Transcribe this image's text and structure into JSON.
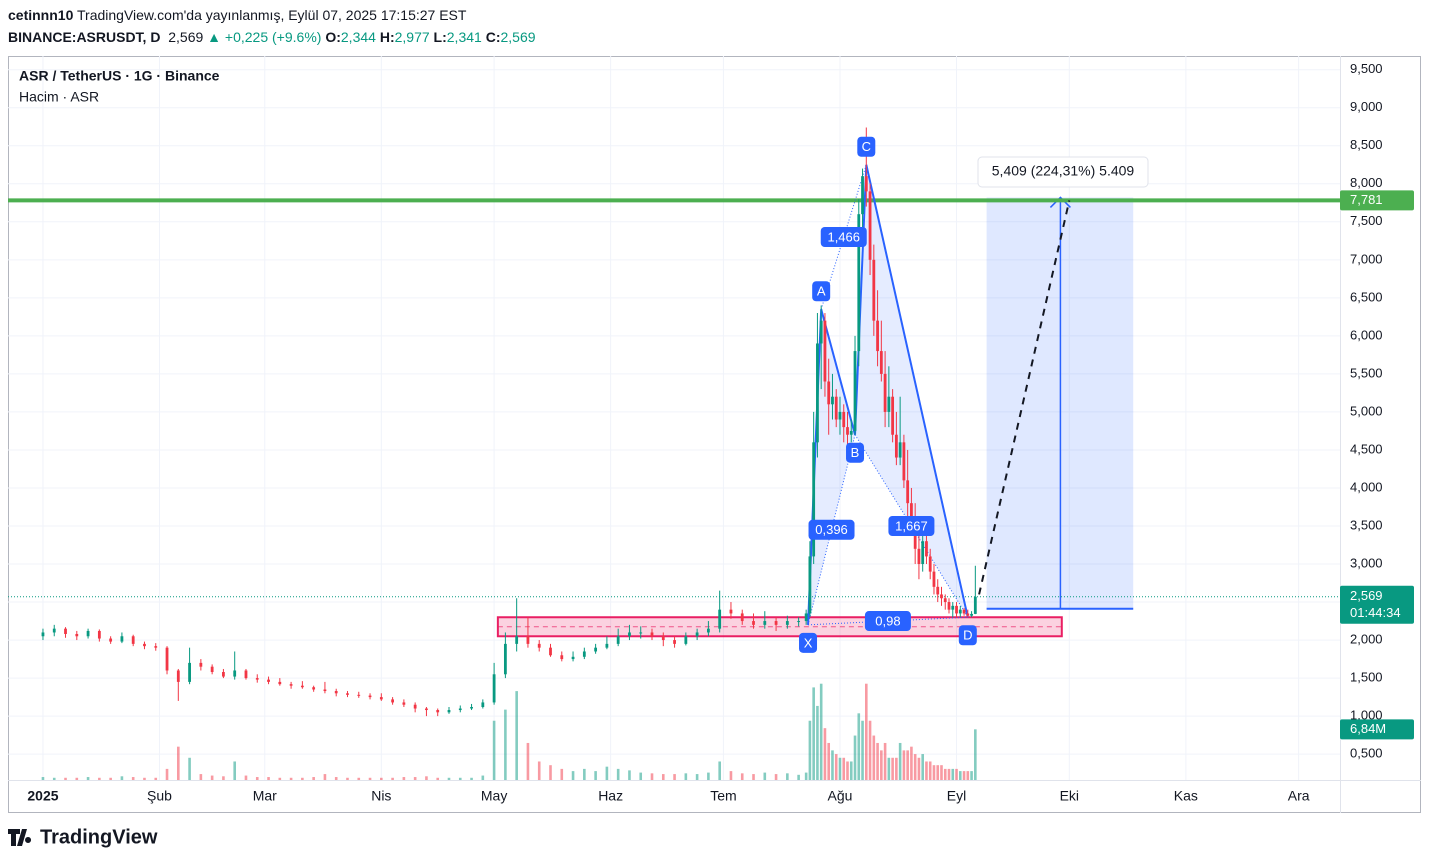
{
  "header": {
    "user": "cetinnn10",
    "published": "TradingView.com'da yayınlanmış, Eylül 07, 2025 17:15:27 EST",
    "symbol": "BINANCE:ASRUSDT, D",
    "last": "2,569",
    "change": "▲ +0,225 (+9.6%)",
    "ohlc": [
      {
        "label": "O:",
        "value": "2,344"
      },
      {
        "label": "H:",
        "value": "2,977"
      },
      {
        "label": "L:",
        "value": "2,341"
      },
      {
        "label": "C:",
        "value": "2,569"
      }
    ]
  },
  "chart_data": {
    "type": "candlestick",
    "title": "ASR / TetherUS · 1G · Binance",
    "subtitle": "Hacim · ASR",
    "up_color": "#089981",
    "down_color": "#f23645",
    "grid": true,
    "xlim": [
      -9.3,
      345
    ],
    "ylim": [
      0.16,
      9.68
    ],
    "vlim": [
      0,
      13.5
    ],
    "xticks": [
      {
        "value": 0,
        "label": "2025"
      },
      {
        "value": 31,
        "label": "Şub"
      },
      {
        "value": 59,
        "label": "Mar"
      },
      {
        "value": 90,
        "label": "Nis"
      },
      {
        "value": 120,
        "label": "May"
      },
      {
        "value": 151,
        "label": "Haz"
      },
      {
        "value": 181,
        "label": "Tem"
      },
      {
        "value": 212,
        "label": "Ağu"
      },
      {
        "value": 243,
        "label": "Eyl"
      },
      {
        "value": 273,
        "label": "Eki"
      },
      {
        "value": 304,
        "label": "Kas"
      },
      {
        "value": 334,
        "label": "Ara"
      }
    ],
    "yticks": [
      {
        "value": 0.5,
        "label": "0,500"
      },
      {
        "value": 1,
        "label": "1,000"
      },
      {
        "value": 1.5,
        "label": "1,500"
      },
      {
        "value": 2,
        "label": "2,000"
      },
      {
        "value": 2.5,
        "label": "2,500"
      },
      {
        "value": 3,
        "label": "3,000"
      },
      {
        "value": 3.5,
        "label": "3,500"
      },
      {
        "value": 4,
        "label": "4,000"
      },
      {
        "value": 4.5,
        "label": "4,500"
      },
      {
        "value": 5,
        "label": "5,000"
      },
      {
        "value": 5.5,
        "label": "5,500"
      },
      {
        "value": 6,
        "label": "6,000"
      },
      {
        "value": 6.5,
        "label": "6,500"
      },
      {
        "value": 7,
        "label": "7,000"
      },
      {
        "value": 7.5,
        "label": "7,500"
      },
      {
        "value": 8,
        "label": "8,000"
      },
      {
        "value": 8.5,
        "label": "8,500"
      },
      {
        "value": 9,
        "label": "9,000"
      },
      {
        "value": 9.5,
        "label": "9,500"
      }
    ],
    "x": [
      0,
      3,
      6,
      9,
      12,
      15,
      18,
      21,
      24,
      27,
      30,
      33,
      36,
      39,
      42,
      45,
      48,
      51,
      54,
      57,
      60,
      63,
      66,
      69,
      72,
      75,
      78,
      81,
      84,
      87,
      90,
      93,
      96,
      99,
      102,
      105,
      108,
      111,
      114,
      117,
      120,
      123,
      126,
      129,
      132,
      135,
      138,
      141,
      144,
      147,
      150,
      153,
      156,
      159,
      162,
      165,
      168,
      171,
      174,
      177,
      180,
      183,
      186,
      189,
      192,
      195,
      198,
      201,
      203,
      204,
      205,
      206,
      207,
      208,
      209,
      210,
      211,
      212,
      213,
      214,
      215,
      216,
      217,
      218,
      219,
      220,
      221,
      222,
      223,
      224,
      225,
      226,
      227,
      228,
      229,
      230,
      231,
      232,
      233,
      234,
      235,
      236,
      237,
      238,
      239,
      240,
      241,
      242,
      243,
      244,
      245,
      246,
      247,
      248
    ],
    "open": [
      2.05,
      2.1,
      2.15,
      2.08,
      2.05,
      2.12,
      2.02,
      1.98,
      2.05,
      1.95,
      1.92,
      1.9,
      1.6,
      1.45,
      1.7,
      1.65,
      1.58,
      1.52,
      1.6,
      1.5,
      1.48,
      1.45,
      1.42,
      1.4,
      1.38,
      1.35,
      1.33,
      1.3,
      1.28,
      1.27,
      1.25,
      1.22,
      1.18,
      1.15,
      1.1,
      1.08,
      1.05,
      1.08,
      1.1,
      1.12,
      1.18,
      1.55,
      1.95,
      2.05,
      1.95,
      1.9,
      1.8,
      1.75,
      1.78,
      1.85,
      1.9,
      1.95,
      2.05,
      2.1,
      2.1,
      2.05,
      2.0,
      1.95,
      2.05,
      2.1,
      2.15,
      2.4,
      2.35,
      2.25,
      2.2,
      2.25,
      2.2,
      2.25,
      2.25,
      2.35,
      3.1,
      4.6,
      5.9,
      6.2,
      5.4,
      5.1,
      5.2,
      4.9,
      5.0,
      4.8,
      4.7,
      4.75,
      5.8,
      7.6,
      8.1,
      7.9,
      7.0,
      6.2,
      5.8,
      5.5,
      5.0,
      5.2,
      4.7,
      4.4,
      4.6,
      4.1,
      3.8,
      3.5,
      3.2,
      3.0,
      3.3,
      3.1,
      2.9,
      2.7,
      2.6,
      2.55,
      2.5,
      2.4,
      2.45,
      2.35,
      2.4,
      2.35,
      2.32,
      2.344
    ],
    "high": [
      2.15,
      2.2,
      2.17,
      2.12,
      2.15,
      2.14,
      2.05,
      2.1,
      2.07,
      1.98,
      1.96,
      1.92,
      1.62,
      1.9,
      1.75,
      1.68,
      1.62,
      1.85,
      1.62,
      1.55,
      1.52,
      1.5,
      1.45,
      1.46,
      1.4,
      1.45,
      1.36,
      1.33,
      1.32,
      1.3,
      1.3,
      1.25,
      1.22,
      1.18,
      1.12,
      1.1,
      1.12,
      1.14,
      1.16,
      1.22,
      1.7,
      2.1,
      2.55,
      2.3,
      2.0,
      1.95,
      1.85,
      1.85,
      1.9,
      1.95,
      2.05,
      2.15,
      2.2,
      2.18,
      2.15,
      2.1,
      2.05,
      2.1,
      2.15,
      2.25,
      2.65,
      2.5,
      2.4,
      2.35,
      2.38,
      2.3,
      2.32,
      2.3,
      2.4,
      3.3,
      5.0,
      6.3,
      6.4,
      6.3,
      5.7,
      5.5,
      5.3,
      5.2,
      5.1,
      5.0,
      4.9,
      6.0,
      7.8,
      8.2,
      8.74,
      8.0,
      7.2,
      6.6,
      6.2,
      5.8,
      5.6,
      5.3,
      5.0,
      5.2,
      4.7,
      4.5,
      4.0,
      3.8,
      3.4,
      3.4,
      3.4,
      3.2,
      3.0,
      2.8,
      2.7,
      2.6,
      2.55,
      2.5,
      2.5,
      2.45,
      2.42,
      2.4,
      2.38,
      2.977
    ],
    "low": [
      2.0,
      2.05,
      2.03,
      2.0,
      2.02,
      1.98,
      1.95,
      1.96,
      1.92,
      1.88,
      1.86,
      1.55,
      1.2,
      1.42,
      1.6,
      1.55,
      1.5,
      1.48,
      1.48,
      1.44,
      1.42,
      1.4,
      1.36,
      1.36,
      1.32,
      1.3,
      1.26,
      1.25,
      1.24,
      1.22,
      1.2,
      1.15,
      1.12,
      1.05,
      1.0,
      1.0,
      1.03,
      1.05,
      1.08,
      1.1,
      1.15,
      1.5,
      1.85,
      1.9,
      1.85,
      1.78,
      1.72,
      1.72,
      1.75,
      1.82,
      1.88,
      1.92,
      2.0,
      2.02,
      2.0,
      1.92,
      1.9,
      1.93,
      2.0,
      2.05,
      2.1,
      2.28,
      2.2,
      2.15,
      2.15,
      2.12,
      2.15,
      2.18,
      2.2,
      2.3,
      3.0,
      4.4,
      5.3,
      5.2,
      4.7,
      4.9,
      4.8,
      4.7,
      4.6,
      4.5,
      4.6,
      4.7,
      5.6,
      7.2,
      7.7,
      6.8,
      6.0,
      5.6,
      5.4,
      4.8,
      4.8,
      4.6,
      4.3,
      4.3,
      4.0,
      3.6,
      3.4,
      3.0,
      2.8,
      2.9,
      3.0,
      2.8,
      2.6,
      2.5,
      2.45,
      2.4,
      2.35,
      2.3,
      2.3,
      2.3,
      2.32,
      2.3,
      2.3,
      2.341
    ],
    "close": [
      2.1,
      2.15,
      2.08,
      2.05,
      2.12,
      2.02,
      1.98,
      2.05,
      1.95,
      1.92,
      1.9,
      1.6,
      1.45,
      1.7,
      1.65,
      1.58,
      1.52,
      1.6,
      1.5,
      1.48,
      1.45,
      1.42,
      1.4,
      1.38,
      1.35,
      1.33,
      1.3,
      1.28,
      1.27,
      1.25,
      1.22,
      1.18,
      1.15,
      1.1,
      1.08,
      1.05,
      1.08,
      1.1,
      1.12,
      1.18,
      1.55,
      1.95,
      2.05,
      1.95,
      1.9,
      1.8,
      1.75,
      1.78,
      1.85,
      1.9,
      1.95,
      2.05,
      2.1,
      2.1,
      2.05,
      2.0,
      1.95,
      2.05,
      2.1,
      2.15,
      2.4,
      2.35,
      2.25,
      2.2,
      2.25,
      2.2,
      2.25,
      2.25,
      2.35,
      3.1,
      4.6,
      5.9,
      6.2,
      5.4,
      5.1,
      5.2,
      4.9,
      5.0,
      4.8,
      4.7,
      4.75,
      5.8,
      7.6,
      8.1,
      7.9,
      7.0,
      6.2,
      5.8,
      5.5,
      5.0,
      5.2,
      4.7,
      4.4,
      4.6,
      4.1,
      3.8,
      3.5,
      3.2,
      3.0,
      3.3,
      3.1,
      2.9,
      2.7,
      2.6,
      2.55,
      2.5,
      2.4,
      2.45,
      2.35,
      2.4,
      2.35,
      2.32,
      2.344,
      2.569
    ],
    "volume": [
      0.4,
      0.3,
      0.3,
      0.3,
      0.4,
      0.3,
      0.3,
      0.5,
      0.4,
      0.3,
      0.3,
      1.5,
      4.5,
      3.0,
      0.8,
      0.6,
      0.5,
      2.5,
      0.6,
      0.4,
      0.4,
      0.3,
      0.3,
      0.3,
      0.4,
      0.8,
      0.4,
      0.3,
      0.3,
      0.3,
      0.3,
      0.3,
      0.4,
      0.4,
      0.5,
      0.3,
      0.3,
      0.3,
      0.3,
      0.6,
      8.0,
      9.5,
      12.0,
      5.0,
      2.5,
      2.0,
      1.5,
      1.2,
      1.5,
      1.2,
      1.8,
      1.5,
      1.3,
      1.0,
      0.9,
      0.8,
      0.8,
      0.9,
      0.8,
      1.0,
      2.5,
      1.2,
      0.9,
      0.8,
      1.0,
      0.8,
      0.9,
      0.7,
      1.0,
      8.0,
      12.5,
      10.0,
      13.0,
      7.0,
      5.0,
      4.0,
      3.5,
      3.0,
      3.0,
      2.5,
      2.5,
      6.0,
      9.0,
      8.0,
      13.0,
      8.0,
      6.0,
      5.0,
      4.0,
      5.0,
      3.0,
      3.0,
      3.0,
      5.0,
      4.0,
      4.0,
      4.5,
      3.5,
      3.0,
      3.5,
      2.5,
      2.5,
      2.0,
      2.0,
      2.0,
      1.5,
      1.5,
      1.5,
      1.5,
      1.2,
      1.2,
      1.2,
      1.2,
      6.84
    ],
    "last_price": {
      "value": 2.569,
      "label": "2,569"
    },
    "countdown": "01:44:34",
    "volume_label": {
      "value": 6.84,
      "label": "6,84M"
    },
    "level": {
      "value": 7.781,
      "label": "7,781",
      "color": "#4caf50"
    },
    "zone": {
      "x": [
        121,
        271
      ],
      "y": [
        2.05,
        2.3
      ],
      "color": "#e91e63"
    },
    "pattern": {
      "color": "#2962ff",
      "points": [
        {
          "label": "X",
          "x": 203.5,
          "y": 2.2
        },
        {
          "label": "A",
          "x": 207,
          "y": 6.35
        },
        {
          "label": "B",
          "x": 216,
          "y": 4.7
        },
        {
          "label": "C",
          "x": 219,
          "y": 8.25
        },
        {
          "label": "D",
          "x": 246,
          "y": 2.3
        }
      ],
      "ratios": [
        "0,396",
        "1,466",
        "1,667",
        "0,98"
      ]
    },
    "projection": {
      "x": [
        251,
        290
      ],
      "y": [
        2.411,
        7.82
      ],
      "label": "5,409 (224,31%) 5.409",
      "path_x": [
        249,
        273
      ],
      "path_y": [
        2.6,
        7.78
      ]
    }
  },
  "footer": {
    "brand": "TradingView"
  }
}
